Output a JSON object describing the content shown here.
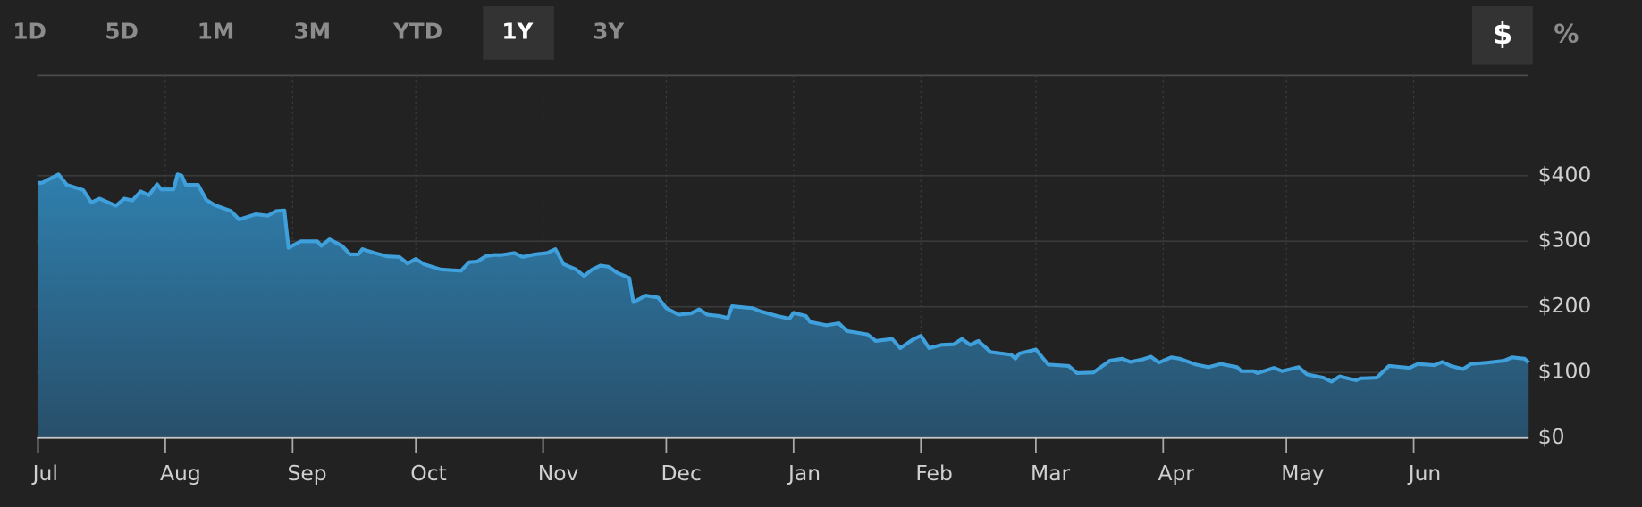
{
  "toolbar": {
    "ranges": [
      "1D",
      "5D",
      "1M",
      "3M",
      "YTD",
      "1Y",
      "3Y"
    ],
    "selected_range": 5,
    "units": [
      "$",
      "%"
    ],
    "selected_unit": 0
  },
  "chart_data": {
    "type": "area",
    "color": "#3fa0dc",
    "fill": "#2f7aa6",
    "grid": true,
    "xlim": [
      0,
      363
    ],
    "ylim": [
      0,
      553
    ],
    "xticks": [
      {
        "value": 0,
        "label": "Jul"
      },
      {
        "value": 31,
        "label": "Aug"
      },
      {
        "value": 62,
        "label": "Sep"
      },
      {
        "value": 92,
        "label": "Oct"
      },
      {
        "value": 123,
        "label": "Nov"
      },
      {
        "value": 153,
        "label": "Dec"
      },
      {
        "value": 184,
        "label": "Jan"
      },
      {
        "value": 215,
        "label": "Feb"
      },
      {
        "value": 243,
        "label": "Mar"
      },
      {
        "value": 274,
        "label": "Apr"
      },
      {
        "value": 304,
        "label": "May"
      },
      {
        "value": 335,
        "label": "Jun"
      }
    ],
    "yticks": [
      {
        "value": 0,
        "label": "$0"
      },
      {
        "value": 100,
        "label": "$100"
      },
      {
        "value": 200,
        "label": "$200"
      },
      {
        "value": 300,
        "label": "$300"
      },
      {
        "value": 400,
        "label": "$400"
      }
    ],
    "x": [
      0,
      1,
      5,
      7,
      11,
      13,
      15,
      19,
      21,
      23,
      25,
      27,
      29,
      30,
      33,
      34,
      35,
      36,
      39,
      41,
      43,
      47,
      49,
      53,
      56,
      58,
      60,
      61,
      64,
      68,
      69,
      71,
      74,
      76,
      78,
      79,
      82,
      85,
      88,
      90,
      92,
      94,
      98,
      103,
      105,
      107,
      109,
      111,
      113,
      116,
      118,
      121,
      124,
      126,
      128,
      131,
      133,
      135,
      137,
      139,
      141,
      144,
      145,
      148,
      151,
      153,
      156,
      159,
      161,
      163,
      166,
      168,
      169,
      172,
      174,
      176,
      180,
      183,
      184,
      187,
      188,
      192,
      195,
      197,
      202,
      204,
      208,
      210,
      213,
      215,
      217,
      220,
      223,
      225,
      227,
      229,
      232,
      237,
      238,
      239,
      243,
      246,
      251,
      253,
      257,
      261,
      264,
      266,
      269,
      271,
      273,
      276,
      278,
      282,
      285,
      288,
      292,
      293,
      296,
      297,
      301,
      303,
      307,
      309,
      313,
      315,
      317,
      319,
      321,
      322,
      326,
      329,
      334,
      336,
      340,
      342,
      344,
      347,
      349,
      353,
      357,
      359,
      362,
      363
    ],
    "values": [
      389,
      389,
      402,
      386,
      378,
      359,
      365,
      354,
      365,
      362,
      376,
      370,
      387,
      379,
      379,
      402,
      400,
      386,
      386,
      363,
      355,
      346,
      333,
      341,
      339,
      346,
      347,
      290,
      300,
      300,
      293,
      303,
      293,
      280,
      280,
      288,
      282,
      277,
      276,
      266,
      273,
      265,
      257,
      255,
      268,
      269,
      277,
      279,
      279,
      282,
      276,
      280,
      282,
      288,
      265,
      257,
      247,
      257,
      263,
      261,
      252,
      244,
      207,
      217,
      214,
      198,
      188,
      190,
      196,
      188,
      186,
      183,
      201,
      199,
      198,
      193,
      186,
      182,
      191,
      186,
      177,
      172,
      175,
      163,
      158,
      148,
      151,
      137,
      150,
      156,
      137,
      142,
      143,
      151,
      142,
      148,
      131,
      127,
      121,
      129,
      135,
      112,
      110,
      99,
      100,
      118,
      121,
      116,
      120,
      124,
      115,
      123,
      121,
      112,
      108,
      113,
      108,
      102,
      102,
      99,
      107,
      102,
      108,
      97,
      92,
      86,
      94,
      91,
      88,
      91,
      92,
      110,
      107,
      113,
      111,
      116,
      110,
      105,
      113,
      115,
      118,
      123,
      121,
      115
    ]
  }
}
